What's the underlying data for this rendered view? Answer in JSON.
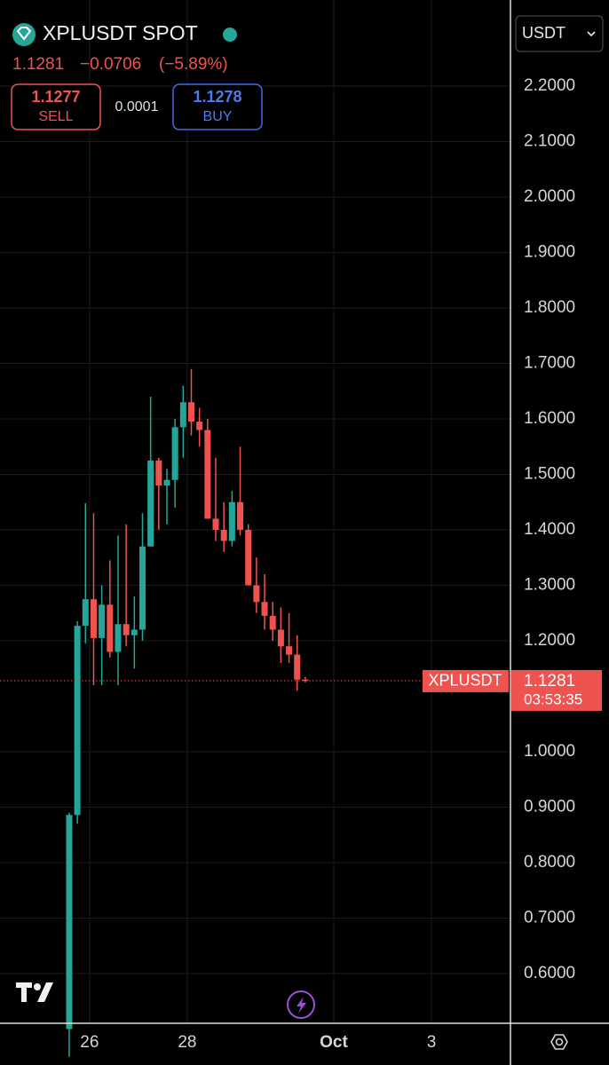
{
  "header": {
    "symbol": "XPLUSDT SPOT",
    "change": "−0.0706",
    "change_pct": "(−5.89%)",
    "sell_price": "1.1277",
    "sell_label": "SELL",
    "spread": "0.0001",
    "buy_price": "1.1278",
    "buy_label": "BUY",
    "currency": "USDT"
  },
  "chart_data": {
    "type": "candlestick",
    "categories": [
      null,
      null,
      null,
      null,
      null,
      null,
      null,
      null,
      null,
      null,
      null,
      null,
      null,
      null,
      null,
      null,
      null,
      null,
      null,
      null,
      null,
      null,
      null,
      null,
      null,
      null,
      null,
      null,
      null,
      null
    ],
    "open": [
      0.5,
      0.886,
      1.227,
      1.275,
      1.205,
      1.265,
      1.18,
      1.23,
      1.21,
      1.22,
      1.37,
      1.525,
      1.48,
      1.49,
      1.585,
      1.63,
      1.595,
      1.58,
      1.42,
      1.4,
      1.38,
      1.45,
      1.4,
      1.3,
      1.27,
      1.245,
      1.22,
      1.19,
      1.175,
      1.13
    ],
    "high": [
      0.89,
      1.235,
      1.448,
      1.43,
      1.3,
      1.345,
      1.39,
      1.41,
      1.28,
      1.43,
      1.64,
      1.53,
      1.51,
      1.6,
      1.66,
      1.69,
      1.62,
      1.6,
      1.53,
      1.45,
      1.47,
      1.55,
      1.41,
      1.35,
      1.32,
      1.27,
      1.26,
      1.25,
      1.21,
      1.135
    ],
    "low": [
      0.45,
      0.87,
      1.195,
      1.12,
      1.12,
      1.17,
      1.12,
      1.19,
      1.15,
      1.2,
      1.37,
      1.4,
      1.41,
      1.44,
      1.53,
      1.57,
      1.55,
      1.42,
      1.38,
      1.36,
      1.37,
      1.39,
      1.3,
      1.25,
      1.22,
      1.2,
      1.16,
      1.16,
      1.11,
      1.125
    ],
    "close": [
      0.886,
      1.227,
      1.275,
      1.205,
      1.265,
      1.18,
      1.23,
      1.21,
      1.22,
      1.37,
      1.525,
      1.48,
      1.49,
      1.585,
      1.63,
      1.595,
      1.58,
      1.42,
      1.4,
      1.38,
      1.45,
      1.4,
      1.3,
      1.27,
      1.245,
      1.22,
      1.19,
      1.175,
      1.13,
      1.1281
    ],
    "up_color": "#26a69a",
    "down_color": "#ef5350",
    "last_price": 1.1281,
    "last_price_name": "XPLUSDT",
    "countdown": "03:53:35",
    "xlim": [
      -8.5,
      54.2
    ],
    "xticks": [
      {
        "value": 2.5,
        "label": "26"
      },
      {
        "value": 14.5,
        "label": "28"
      },
      {
        "value": 32.5,
        "label": "Oct"
      },
      {
        "value": 44.5,
        "label": "3"
      }
    ],
    "ylim": [
      0.5104,
      2.3552
    ],
    "yticks": [
      {
        "value": 0.6,
        "label": "0.6000"
      },
      {
        "value": 0.7,
        "label": "0.7000"
      },
      {
        "value": 0.8,
        "label": "0.8000"
      },
      {
        "value": 0.9,
        "label": "0.9000"
      },
      {
        "value": 1.0,
        "label": "1.0000"
      },
      {
        "value": 1.2,
        "label": "1.2000"
      },
      {
        "value": 1.3,
        "label": "1.3000"
      },
      {
        "value": 1.4,
        "label": "1.4000"
      },
      {
        "value": 1.5,
        "label": "1.5000"
      },
      {
        "value": 1.6,
        "label": "1.6000"
      },
      {
        "value": 1.7,
        "label": "1.7000"
      },
      {
        "value": 1.8,
        "label": "1.8000"
      },
      {
        "value": 1.9,
        "label": "1.9000"
      },
      {
        "value": 2.0,
        "label": "2.0000"
      },
      {
        "value": 2.1,
        "label": "2.1000"
      },
      {
        "value": 2.2,
        "label": "2.2000"
      }
    ],
    "grid": true
  }
}
